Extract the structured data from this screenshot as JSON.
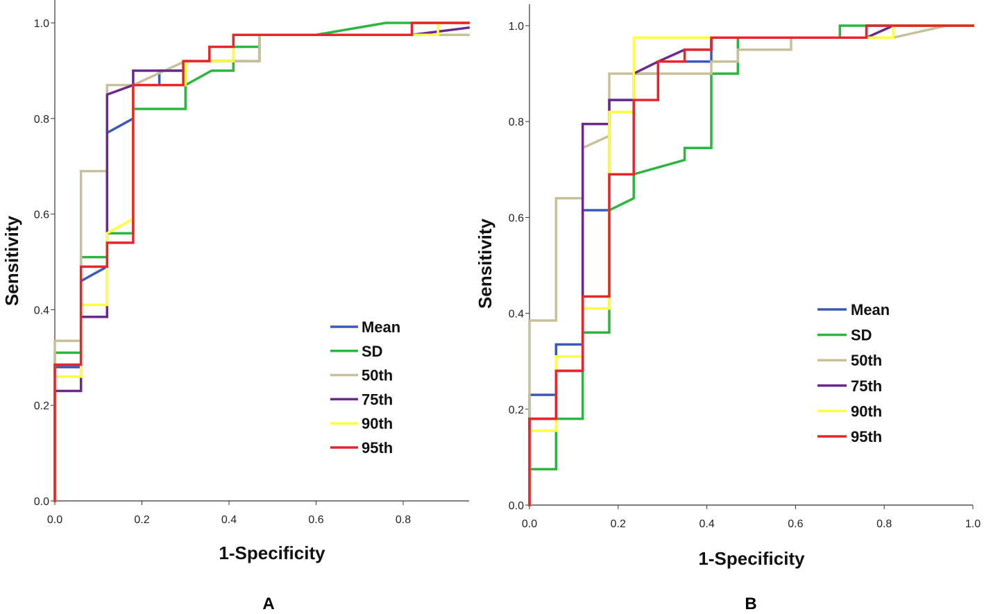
{
  "chart_data": [
    {
      "type": "line",
      "panel_label": "A",
      "xlabel": "1-Specificity",
      "ylabel": "Sensitivity",
      "xlim": [
        0,
        0.95
      ],
      "ylim": [
        0,
        1.0
      ],
      "xticks": [
        "0.0",
        "0.2",
        "0.4",
        "0.6",
        "0.8"
      ],
      "yticks": [
        "0.0",
        "0.2",
        "0.4",
        "0.6",
        "0.8",
        "1.0"
      ],
      "legend_position": "lower-right",
      "series": [
        {
          "name": "Mean",
          "color": "#3a59b8",
          "x": [
            0,
            0,
            0.06,
            0.06,
            0.12,
            0.12,
            0.18,
            0.18,
            0.24,
            0.24,
            0.3,
            0.3,
            0.47,
            0.47,
            0.88,
            0.88,
            0.95
          ],
          "y": [
            0,
            0.28,
            0.28,
            0.46,
            0.49,
            0.77,
            0.8,
            0.87,
            0.87,
            0.9,
            0.9,
            0.92,
            0.92,
            0.975,
            0.975,
            1.0,
            1.0
          ]
        },
        {
          "name": "SD",
          "color": "#2db541",
          "x": [
            0,
            0,
            0.06,
            0.06,
            0.12,
            0.12,
            0.18,
            0.18,
            0.3,
            0.3,
            0.36,
            0.36,
            0.41,
            0.41,
            0.47,
            0.47,
            0.6,
            0.76,
            0.95
          ],
          "y": [
            0,
            0.31,
            0.31,
            0.51,
            0.51,
            0.56,
            0.56,
            0.82,
            0.82,
            0.87,
            0.9,
            0.9,
            0.9,
            0.95,
            0.95,
            0.975,
            0.975,
            1.0,
            1.0
          ]
        },
        {
          "name": "50th",
          "color": "#c8c09a",
          "x": [
            0,
            0,
            0.06,
            0.06,
            0.12,
            0.12,
            0.18,
            0.18,
            0.3,
            0.3,
            0.47,
            0.47,
            0.95
          ],
          "y": [
            0,
            0.335,
            0.335,
            0.69,
            0.69,
            0.87,
            0.87,
            0.87,
            0.92,
            0.92,
            0.92,
            0.975,
            0.975
          ]
        },
        {
          "name": "75th",
          "color": "#6a2a8c",
          "x": [
            0,
            0,
            0.06,
            0.06,
            0.12,
            0.12,
            0.18,
            0.18,
            0.3,
            0.3,
            0.41,
            0.41,
            0.82,
            0.82,
            0.95
          ],
          "y": [
            0,
            0.23,
            0.23,
            0.385,
            0.385,
            0.85,
            0.87,
            0.9,
            0.9,
            0.92,
            0.92,
            0.975,
            0.975,
            0.975,
            0.99
          ]
        },
        {
          "name": "90th",
          "color": "#ffff40",
          "x": [
            0,
            0,
            0.06,
            0.06,
            0.12,
            0.12,
            0.18,
            0.18,
            0.3,
            0.3,
            0.41,
            0.41,
            0.82,
            0.82,
            0.88,
            0.88,
            0.95
          ],
          "y": [
            0,
            0.26,
            0.26,
            0.41,
            0.41,
            0.56,
            0.59,
            0.87,
            0.87,
            0.92,
            0.92,
            0.975,
            0.975,
            0.975,
            0.975,
            1.0,
            1.0
          ]
        },
        {
          "name": "95th",
          "color": "#e8252a",
          "x": [
            0,
            0,
            0.06,
            0.06,
            0.12,
            0.12,
            0.18,
            0.18,
            0.295,
            0.295,
            0.355,
            0.355,
            0.41,
            0.41,
            0.82,
            0.82,
            0.95
          ],
          "y": [
            0,
            0.285,
            0.285,
            0.49,
            0.49,
            0.54,
            0.54,
            0.87,
            0.87,
            0.92,
            0.92,
            0.95,
            0.95,
            0.975,
            0.975,
            1.0,
            1.0
          ]
        }
      ]
    },
    {
      "type": "line",
      "panel_label": "B",
      "xlabel": "1-Specificity",
      "ylabel": "Sensitivity",
      "xlim": [
        0,
        1.0
      ],
      "ylim": [
        0,
        1.0
      ],
      "xticks": [
        "0.0",
        "0.2",
        "0.4",
        "0.6",
        "0.8",
        "1.0"
      ],
      "yticks": [
        "0.0",
        "0.2",
        "0.4",
        "0.6",
        "0.8",
        "1.0"
      ],
      "legend_position": "lower-right",
      "series": [
        {
          "name": "Mean",
          "color": "#3a59b8",
          "x": [
            0,
            0,
            0.06,
            0.06,
            0.12,
            0.12,
            0.18,
            0.18,
            0.235,
            0.235,
            0.29,
            0.29,
            0.41,
            0.41,
            0.76,
            0.76,
            1.0
          ],
          "y": [
            0,
            0.23,
            0.23,
            0.335,
            0.335,
            0.615,
            0.615,
            0.845,
            0.845,
            0.9,
            0.9,
            0.925,
            0.925,
            0.975,
            0.975,
            1.0,
            1.0
          ]
        },
        {
          "name": "SD",
          "color": "#2db541",
          "x": [
            0,
            0,
            0.06,
            0.06,
            0.12,
            0.12,
            0.18,
            0.18,
            0.235,
            0.235,
            0.35,
            0.35,
            0.41,
            0.41,
            0.47,
            0.47,
            0.7,
            0.7,
            1.0
          ],
          "y": [
            0,
            0.075,
            0.075,
            0.18,
            0.18,
            0.36,
            0.36,
            0.615,
            0.64,
            0.69,
            0.72,
            0.745,
            0.745,
            0.9,
            0.9,
            0.975,
            0.975,
            1.0,
            1.0
          ]
        },
        {
          "name": "50th",
          "color": "#c8c09a",
          "x": [
            0,
            0,
            0.06,
            0.06,
            0.12,
            0.12,
            0.18,
            0.18,
            0.41,
            0.41,
            0.47,
            0.47,
            0.59,
            0.59,
            0.82,
            0.94,
            1.0
          ],
          "y": [
            0,
            0.385,
            0.385,
            0.64,
            0.64,
            0.745,
            0.77,
            0.9,
            0.9,
            0.925,
            0.925,
            0.95,
            0.95,
            0.975,
            0.975,
            1.0,
            1.0
          ]
        },
        {
          "name": "75th",
          "color": "#6a2a8c",
          "x": [
            0,
            0,
            0.06,
            0.06,
            0.12,
            0.12,
            0.18,
            0.18,
            0.235,
            0.235,
            0.29,
            0.35,
            0.41,
            0.41,
            0.76,
            0.82,
            1.0
          ],
          "y": [
            0,
            0.18,
            0.18,
            0.28,
            0.28,
            0.795,
            0.795,
            0.845,
            0.845,
            0.9,
            0.925,
            0.95,
            0.95,
            0.975,
            0.975,
            1.0,
            1.0
          ]
        },
        {
          "name": "90th",
          "color": "#ffff40",
          "x": [
            0,
            0,
            0.06,
            0.06,
            0.12,
            0.12,
            0.18,
            0.18,
            0.235,
            0.235,
            0.76,
            0.76,
            0.82,
            0.82,
            1.0
          ],
          "y": [
            0,
            0.155,
            0.155,
            0.31,
            0.31,
            0.41,
            0.41,
            0.82,
            0.82,
            0.975,
            0.975,
            0.975,
            0.975,
            1.0,
            1.0
          ]
        },
        {
          "name": "95th",
          "color": "#e8252a",
          "x": [
            0,
            0,
            0.06,
            0.06,
            0.12,
            0.12,
            0.18,
            0.18,
            0.235,
            0.235,
            0.29,
            0.29,
            0.35,
            0.35,
            0.41,
            0.41,
            0.76,
            0.76,
            1.0
          ],
          "y": [
            0,
            0.18,
            0.18,
            0.28,
            0.28,
            0.435,
            0.435,
            0.69,
            0.69,
            0.845,
            0.845,
            0.925,
            0.925,
            0.95,
            0.95,
            0.975,
            0.975,
            1.0,
            1.0
          ]
        }
      ]
    }
  ]
}
